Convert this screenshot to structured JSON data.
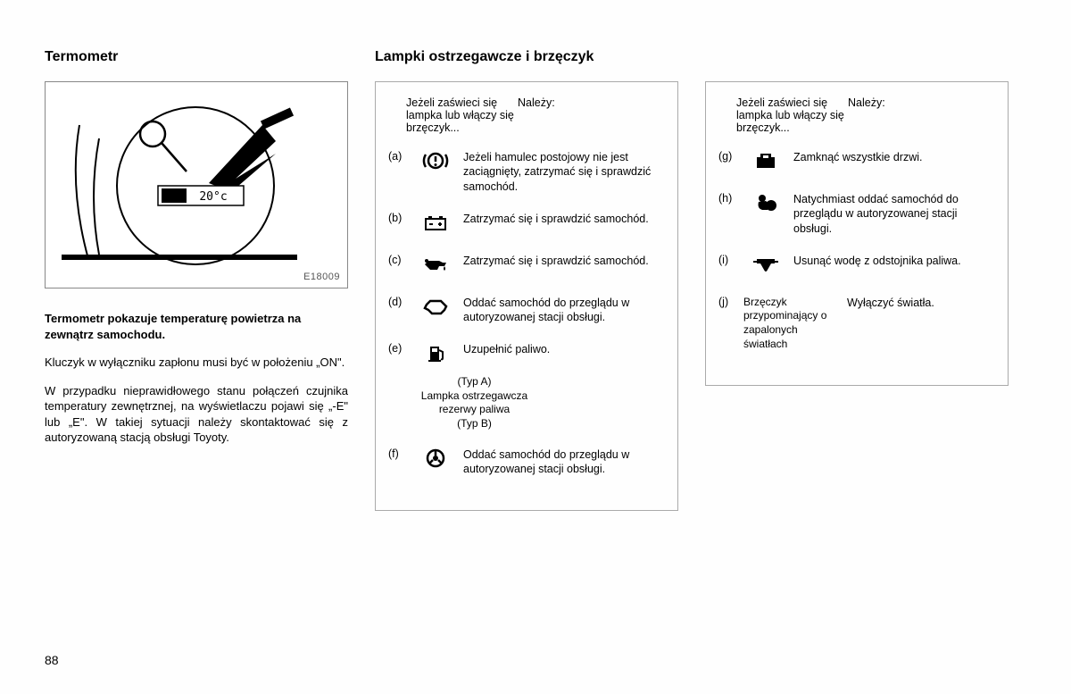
{
  "pageNumber": "88",
  "left": {
    "title": "Termometr",
    "diagramLabel": "E18009",
    "displayText": "20°c",
    "boldPara": "Termometr pokazuje temperaturę powietrza na zewnątrz samochodu.",
    "para1": "Kluczyk w wyłączniku zapłonu musi być w położeniu „ON\".",
    "para2": "W przypadku nieprawidłowego stanu połączeń czujnika temperatury zewnętrznej, na wyświetlaczu pojawi się „-E\" lub „E\". W takiej sytuacji należy skontaktować się z autoryzowaną stacją obsługi Toyoty."
  },
  "midTitle": "Lampki ostrzegawcze i brzęczyk",
  "header": {
    "left": "Jeżeli zaświeci się lampka lub włączy się brzęczyk...",
    "right": "Należy:"
  },
  "midRows": [
    {
      "letter": "(a)",
      "icon": "brake",
      "desc": "Jeżeli hamulec postojowy nie jest zaciągnięty, zatrzymać się i sprawdzić samochód."
    },
    {
      "letter": "(b)",
      "icon": "battery",
      "desc": "Zatrzymać się i sprawdzić samochód."
    },
    {
      "letter": "(c)",
      "icon": "oil",
      "desc": "Zatrzymać się i sprawdzić samochód."
    },
    {
      "letter": "(d)",
      "icon": "engine",
      "desc": "Oddać samochód do przeglądu w autoryzowanej stacji obsługi."
    },
    {
      "letter": "(e)",
      "icon": "fuel",
      "desc": "Uzupełnić paliwo."
    },
    {
      "letter": "(f)",
      "icon": "wheel",
      "desc": "Oddać samochód do przeglądu w autoryzowanej stacji obsługi."
    }
  ],
  "subNote": "(Typ A)\nLampka ostrzegawcza rezerwy paliwa\n(Typ B)",
  "rightRows": [
    {
      "letter": "(g)",
      "icon": "door",
      "desc": "Zamknąć wszystkie drzwi."
    },
    {
      "letter": "(h)",
      "icon": "srs",
      "desc": "Natychmiast oddać samochód do przeglądu w autoryzowanej stacji obsługi."
    },
    {
      "letter": "(i)",
      "icon": "water",
      "desc": "Usunąć wodę z odstojnika paliwa."
    },
    {
      "letter": "(j)",
      "textLabel": "Brzęczyk przypominający o zapalonych światłach",
      "desc": "Wyłączyć światła."
    }
  ],
  "colors": {
    "text": "#000000",
    "border": "#888888",
    "boxBorder": "#aaaaaa"
  }
}
